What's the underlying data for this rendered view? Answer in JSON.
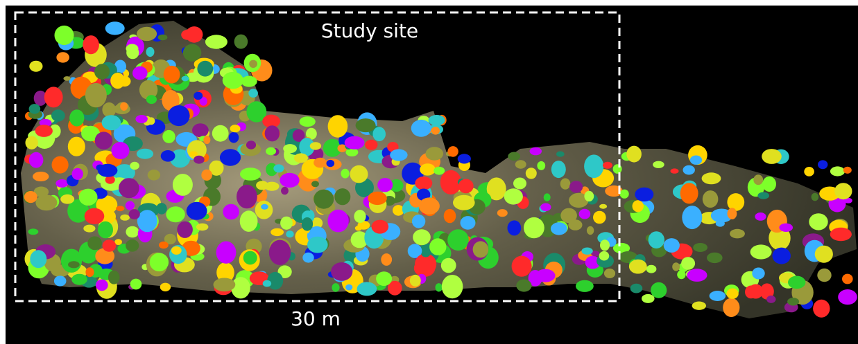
{
  "annotations": {
    "title": "Study site",
    "scale_label": "30 m"
  }
}
